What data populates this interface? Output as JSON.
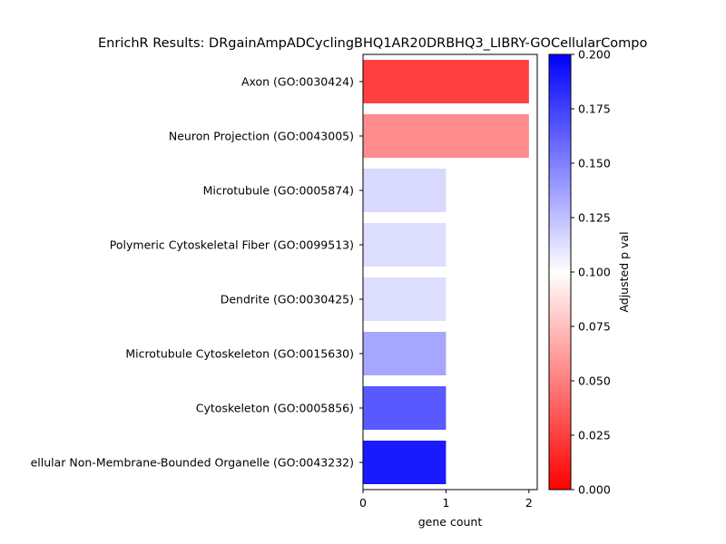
{
  "chart_data": {
    "type": "bar",
    "orientation": "horizontal",
    "title": "EnrichR Results: DRgainAmpADCyclingBHQ1AR20DRBHQ3_LIBRY-GOCellularCompo",
    "xlabel": "gene count",
    "ylabel": "",
    "xlim": [
      0,
      2.1
    ],
    "xticks": [
      "0",
      "1",
      "2"
    ],
    "categories": [
      "Axon (GO:0030424)",
      "Neuron Projection (GO:0043005)",
      "Microtubule (GO:0005874)",
      "Polymeric Cytoskeletal Fiber (GO:0099513)",
      "Dendrite (GO:0030425)",
      "Microtubule Cytoskeleton (GO:0015630)",
      "Cytoskeleton (GO:0005856)",
      "ellular Non-Membrane-Bounded Organelle (GO:0043232)"
    ],
    "values": [
      2,
      2,
      1,
      1,
      1,
      1,
      1,
      1
    ],
    "adjusted_p_values": [
      0.025,
      0.055,
      0.115,
      0.113,
      0.113,
      0.135,
      0.165,
      0.19
    ],
    "colorbar": {
      "label": "Adjusted p val",
      "range": [
        0,
        0.2
      ],
      "ticks": [
        "0.000",
        "0.025",
        "0.050",
        "0.075",
        "0.100",
        "0.125",
        "0.150",
        "0.175",
        "0.200"
      ],
      "colors": [
        "#ff0000",
        "#ffffff",
        "#0000ff"
      ]
    },
    "grid": false,
    "legend": "none"
  }
}
